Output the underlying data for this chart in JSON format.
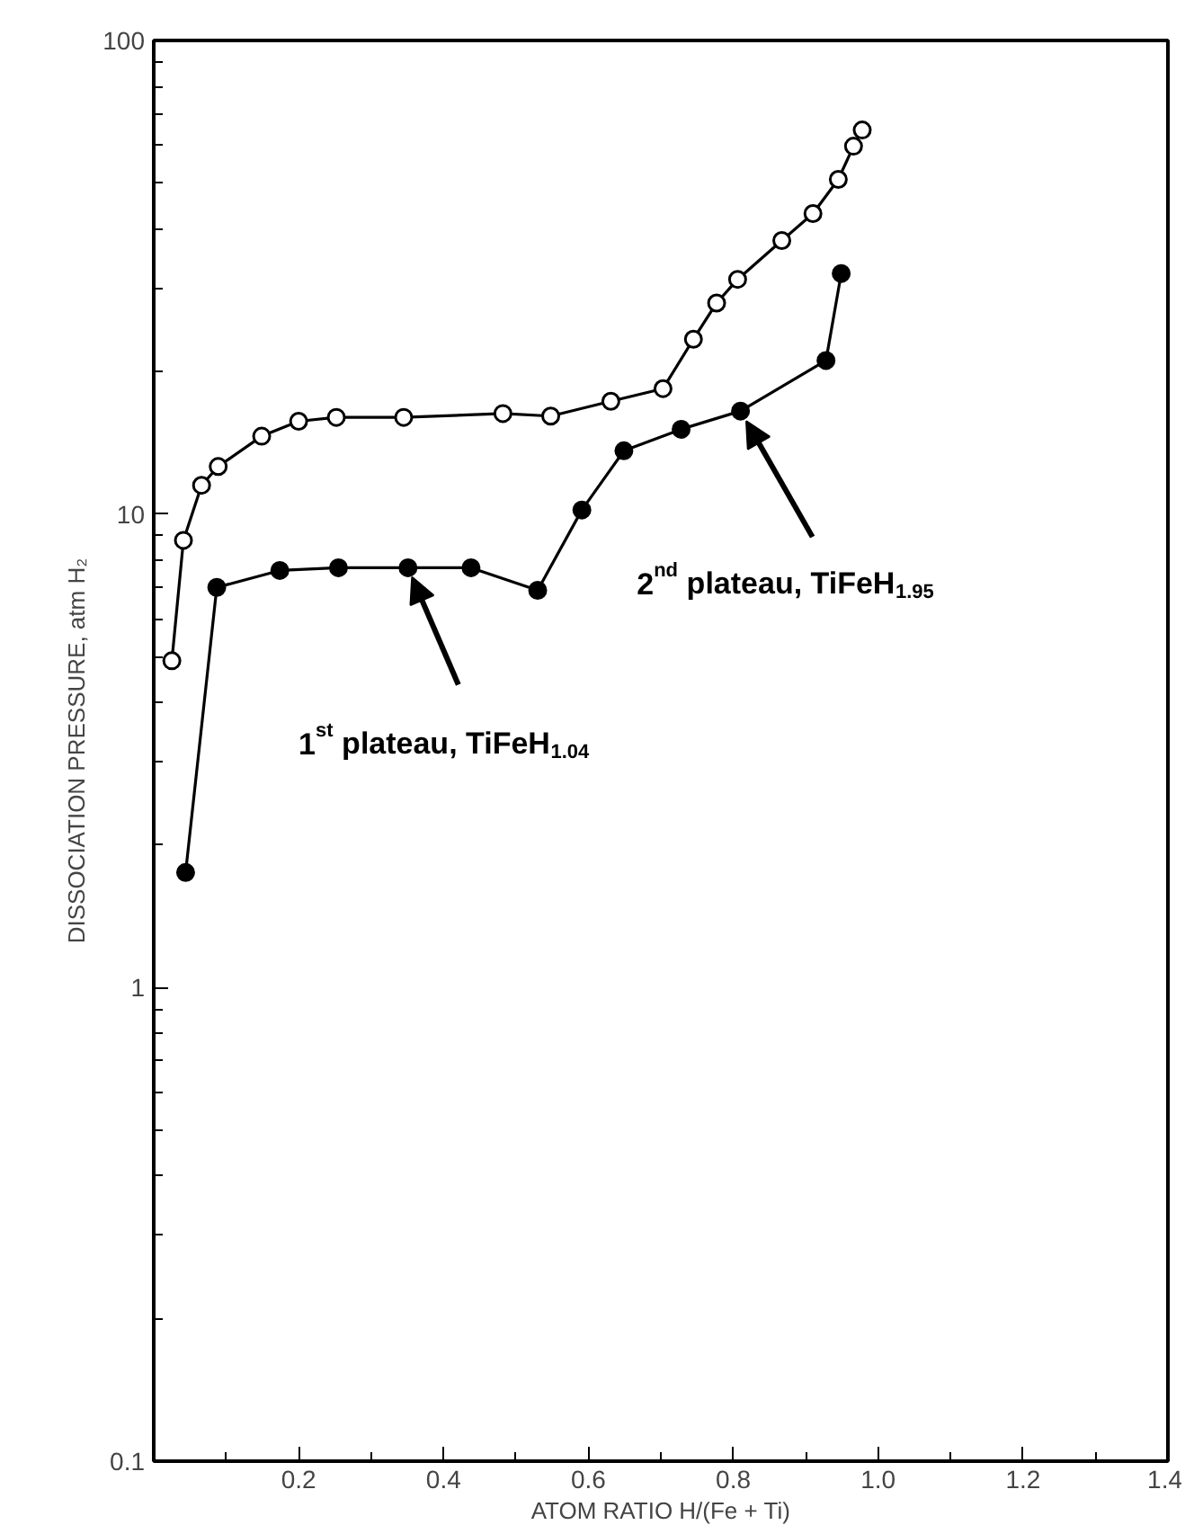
{
  "chart_data": {
    "type": "line",
    "xlabel": "ATOM RATIO H/(Fe + Ti)",
    "ylabel": "DISSOCIATION PRESSURE, atm H₂",
    "log": "y",
    "grid": false,
    "line_style": "solid",
    "xlim": [
      0,
      1.4
    ],
    "ylim": [
      0.1,
      100
    ],
    "xticks": [
      0.2,
      0.4,
      0.6,
      0.8,
      {
        "value": 1,
        "label": "1.0"
      },
      1.2,
      1.4
    ],
    "yticks": [
      0.1,
      1,
      10,
      100
    ],
    "series": [
      {
        "color": "#000000",
        "marker": "circle_open",
        "x": [
          0.025,
          0.041,
          0.066,
          0.089,
          0.149,
          0.2,
          0.252,
          0.345,
          0.482,
          0.548,
          0.631,
          0.703,
          0.745,
          0.777,
          0.806,
          0.867,
          0.91,
          0.945,
          0.966,
          0.978
        ],
        "values": [
          4.9,
          8.8,
          11.5,
          12.6,
          14.6,
          15.7,
          16.0,
          16.0,
          16.3,
          16.1,
          17.3,
          18.4,
          23.4,
          27.9,
          31.3,
          37.8,
          43.1,
          50.9,
          59.8,
          64.7
        ]
      },
      {
        "color": "#000000",
        "marker": "circle",
        "x": [
          0.044,
          0.087,
          0.174,
          0.255,
          0.351,
          0.438,
          0.53,
          0.591,
          0.649,
          0.728,
          0.81,
          0.928,
          0.949
        ],
        "values": [
          1.75,
          7.0,
          7.6,
          7.7,
          7.7,
          7.7,
          6.9,
          10.2,
          13.6,
          15.1,
          16.5,
          21.1,
          32.2
        ]
      }
    ],
    "annotations": [
      {
        "text": "2$^{nd}$ plateau, TiFeH$_{1.95}$",
        "x": 0.81,
        "y": 16.5
      },
      {
        "text": "1$^{st}$ plateau, TiFeH$_{1.04}$",
        "x": 0.351,
        "y": 7.7
      }
    ]
  }
}
